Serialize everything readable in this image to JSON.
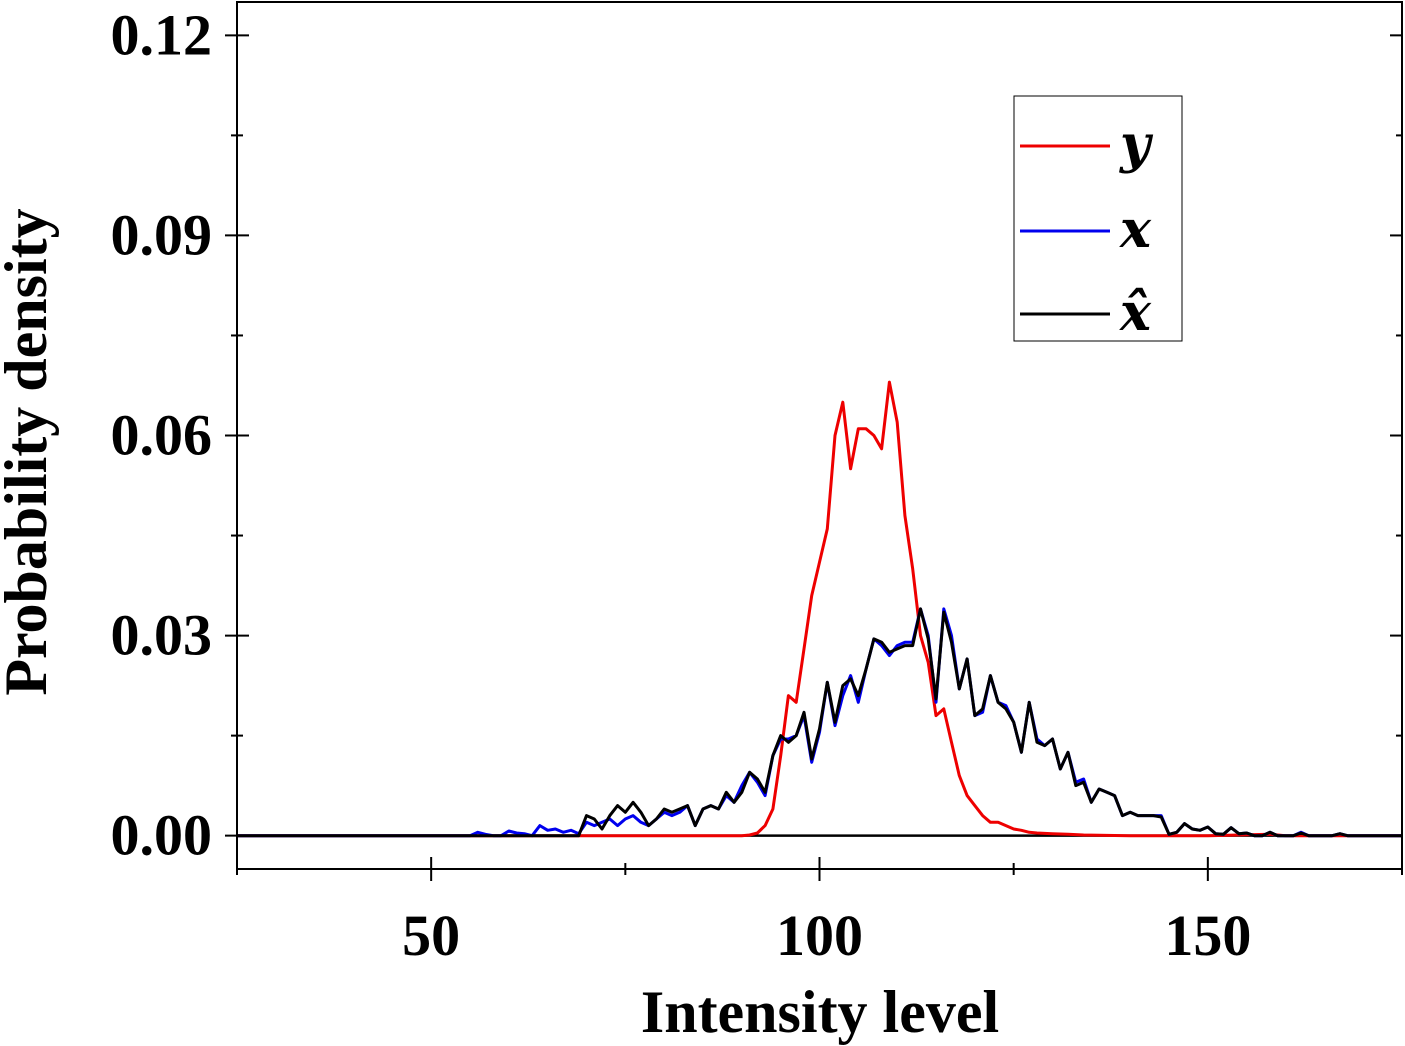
{
  "chart_data": {
    "type": "line",
    "xlabel": "Intensity level",
    "ylabel": "Probability density",
    "xlim": [
      25,
      175
    ],
    "ylim": [
      -0.005,
      0.125
    ],
    "xticks": [
      50,
      100,
      150
    ],
    "xtick_labels": [
      "50",
      "100",
      "150"
    ],
    "yticks": [
      0.0,
      0.03,
      0.06,
      0.09,
      0.12
    ],
    "ytick_labels": [
      "0.00",
      "0.03",
      "0.06",
      "0.09",
      "0.12"
    ],
    "grid": false,
    "legend_position": "top-right",
    "series": [
      {
        "name": "y",
        "color": "#ee0000",
        "x": [
          25,
          90,
          91,
          92,
          93,
          94,
          95,
          96,
          97,
          98,
          99,
          100,
          101,
          102,
          103,
          104,
          105,
          106,
          107,
          108,
          109,
          110,
          111,
          112,
          113,
          114,
          115,
          116,
          117,
          118,
          119,
          120,
          121,
          122,
          123,
          124,
          125,
          126,
          127,
          128,
          130,
          132,
          134,
          136,
          140,
          150,
          158,
          160,
          175
        ],
        "y": [
          0,
          0,
          0.0001,
          0.0004,
          0.0015,
          0.004,
          0.012,
          0.021,
          0.02,
          0.028,
          0.036,
          0.041,
          0.046,
          0.06,
          0.065,
          0.055,
          0.061,
          0.061,
          0.06,
          0.058,
          0.068,
          0.062,
          0.048,
          0.04,
          0.03,
          0.026,
          0.018,
          0.019,
          0.014,
          0.009,
          0.006,
          0.0045,
          0.003,
          0.002,
          0.002,
          0.0015,
          0.001,
          0.0008,
          0.0005,
          0.0004,
          0.0003,
          0.0002,
          0.0001,
          5e-05,
          0,
          0,
          0.0002,
          0,
          0
        ]
      },
      {
        "name": "x",
        "color": "#0000ee",
        "x": [
          25,
          55,
          56,
          57,
          58,
          59,
          60,
          61,
          62,
          63,
          64,
          65,
          66,
          67,
          68,
          69,
          70,
          71,
          72,
          73,
          74,
          75,
          76,
          77,
          78,
          79,
          80,
          81,
          82,
          83,
          84,
          85,
          86,
          87,
          88,
          89,
          90,
          91,
          92,
          93,
          94,
          95,
          96,
          97,
          98,
          99,
          100,
          101,
          102,
          103,
          104,
          105,
          106,
          107,
          108,
          109,
          110,
          111,
          112,
          113,
          114,
          115,
          116,
          117,
          118,
          119,
          120,
          121,
          122,
          123,
          124,
          125,
          126,
          127,
          128,
          129,
          130,
          131,
          132,
          133,
          134,
          135,
          136,
          137,
          138,
          139,
          140,
          141,
          142,
          143,
          144,
          145,
          146,
          147,
          148,
          149,
          150,
          151,
          152,
          153,
          154,
          155,
          156,
          157,
          158,
          159,
          160,
          161,
          162,
          163,
          164,
          165,
          166,
          167,
          168,
          169,
          170,
          175
        ],
        "y": [
          0,
          0,
          0.0005,
          0.0002,
          0,
          0,
          0.0007,
          0.0004,
          0.0003,
          0,
          0.0015,
          0.0008,
          0.001,
          0.0005,
          0.0008,
          0.0003,
          0.002,
          0.0015,
          0.002,
          0.0025,
          0.0015,
          0.0025,
          0.003,
          0.002,
          0.0015,
          0.0025,
          0.0035,
          0.003,
          0.0035,
          0.0045,
          0.0015,
          0.004,
          0.0045,
          0.004,
          0.006,
          0.005,
          0.0075,
          0.0095,
          0.008,
          0.006,
          0.012,
          0.0145,
          0.0145,
          0.015,
          0.018,
          0.011,
          0.0155,
          0.023,
          0.0165,
          0.021,
          0.024,
          0.02,
          0.025,
          0.0295,
          0.0285,
          0.027,
          0.0285,
          0.029,
          0.029,
          0.034,
          0.03,
          0.02,
          0.034,
          0.03,
          0.022,
          0.0265,
          0.018,
          0.0185,
          0.024,
          0.02,
          0.0195,
          0.017,
          0.0125,
          0.02,
          0.0145,
          0.0135,
          0.0145,
          0.01,
          0.0125,
          0.008,
          0.0085,
          0.005,
          0.007,
          0.0065,
          0.006,
          0.003,
          0.0035,
          0.003,
          0.003,
          0.003,
          0.003,
          0.0002,
          0.0005,
          0.0018,
          0.001,
          0.0008,
          0.0013,
          0.0003,
          0.0002,
          0.0012,
          0.0003,
          0.0004,
          0,
          0,
          0.0005,
          0,
          0,
          0,
          0.0005,
          0,
          0,
          0,
          0,
          0.0003,
          0,
          0,
          0,
          0
        ]
      },
      {
        "name": "x̂",
        "color": "#000000",
        "x": [
          25,
          69,
          70,
          71,
          72,
          73,
          74,
          75,
          76,
          77,
          78,
          79,
          80,
          81,
          82,
          83,
          84,
          85,
          86,
          87,
          88,
          89,
          90,
          91,
          92,
          93,
          94,
          95,
          96,
          97,
          98,
          99,
          100,
          101,
          102,
          103,
          104,
          105,
          106,
          107,
          108,
          109,
          110,
          111,
          112,
          113,
          114,
          115,
          116,
          117,
          118,
          119,
          120,
          121,
          122,
          123,
          124,
          125,
          126,
          127,
          128,
          129,
          130,
          131,
          132,
          133,
          134,
          135,
          136,
          137,
          138,
          139,
          140,
          141,
          142,
          143,
          144,
          145,
          146,
          147,
          148,
          149,
          150,
          151,
          152,
          153,
          154,
          155,
          156,
          157,
          158,
          159,
          160,
          161,
          162,
          163,
          164,
          165,
          166,
          167,
          168,
          169,
          170,
          175
        ],
        "y": [
          0,
          0,
          0.003,
          0.0025,
          0.001,
          0.003,
          0.0045,
          0.0035,
          0.005,
          0.0035,
          0.0015,
          0.0025,
          0.004,
          0.0035,
          0.004,
          0.0045,
          0.0015,
          0.004,
          0.0045,
          0.004,
          0.0065,
          0.005,
          0.0065,
          0.0095,
          0.0085,
          0.0065,
          0.012,
          0.015,
          0.014,
          0.015,
          0.0185,
          0.0115,
          0.016,
          0.023,
          0.017,
          0.0225,
          0.0235,
          0.021,
          0.025,
          0.0295,
          0.029,
          0.0275,
          0.028,
          0.0285,
          0.0285,
          0.034,
          0.0295,
          0.0205,
          0.0335,
          0.029,
          0.022,
          0.0265,
          0.018,
          0.019,
          0.024,
          0.02,
          0.019,
          0.017,
          0.0125,
          0.02,
          0.014,
          0.0135,
          0.0145,
          0.01,
          0.0125,
          0.0075,
          0.008,
          0.005,
          0.007,
          0.0065,
          0.006,
          0.003,
          0.0035,
          0.003,
          0.003,
          0.003,
          0.0028,
          0.0002,
          0.0005,
          0.0018,
          0.001,
          0.0008,
          0.0013,
          0.0003,
          0.0002,
          0.0012,
          0.0003,
          0.0004,
          0,
          0,
          0.0005,
          0,
          0,
          0,
          0.0004,
          0,
          0,
          0,
          0,
          0.0003,
          0,
          0,
          0,
          0
        ]
      }
    ]
  }
}
